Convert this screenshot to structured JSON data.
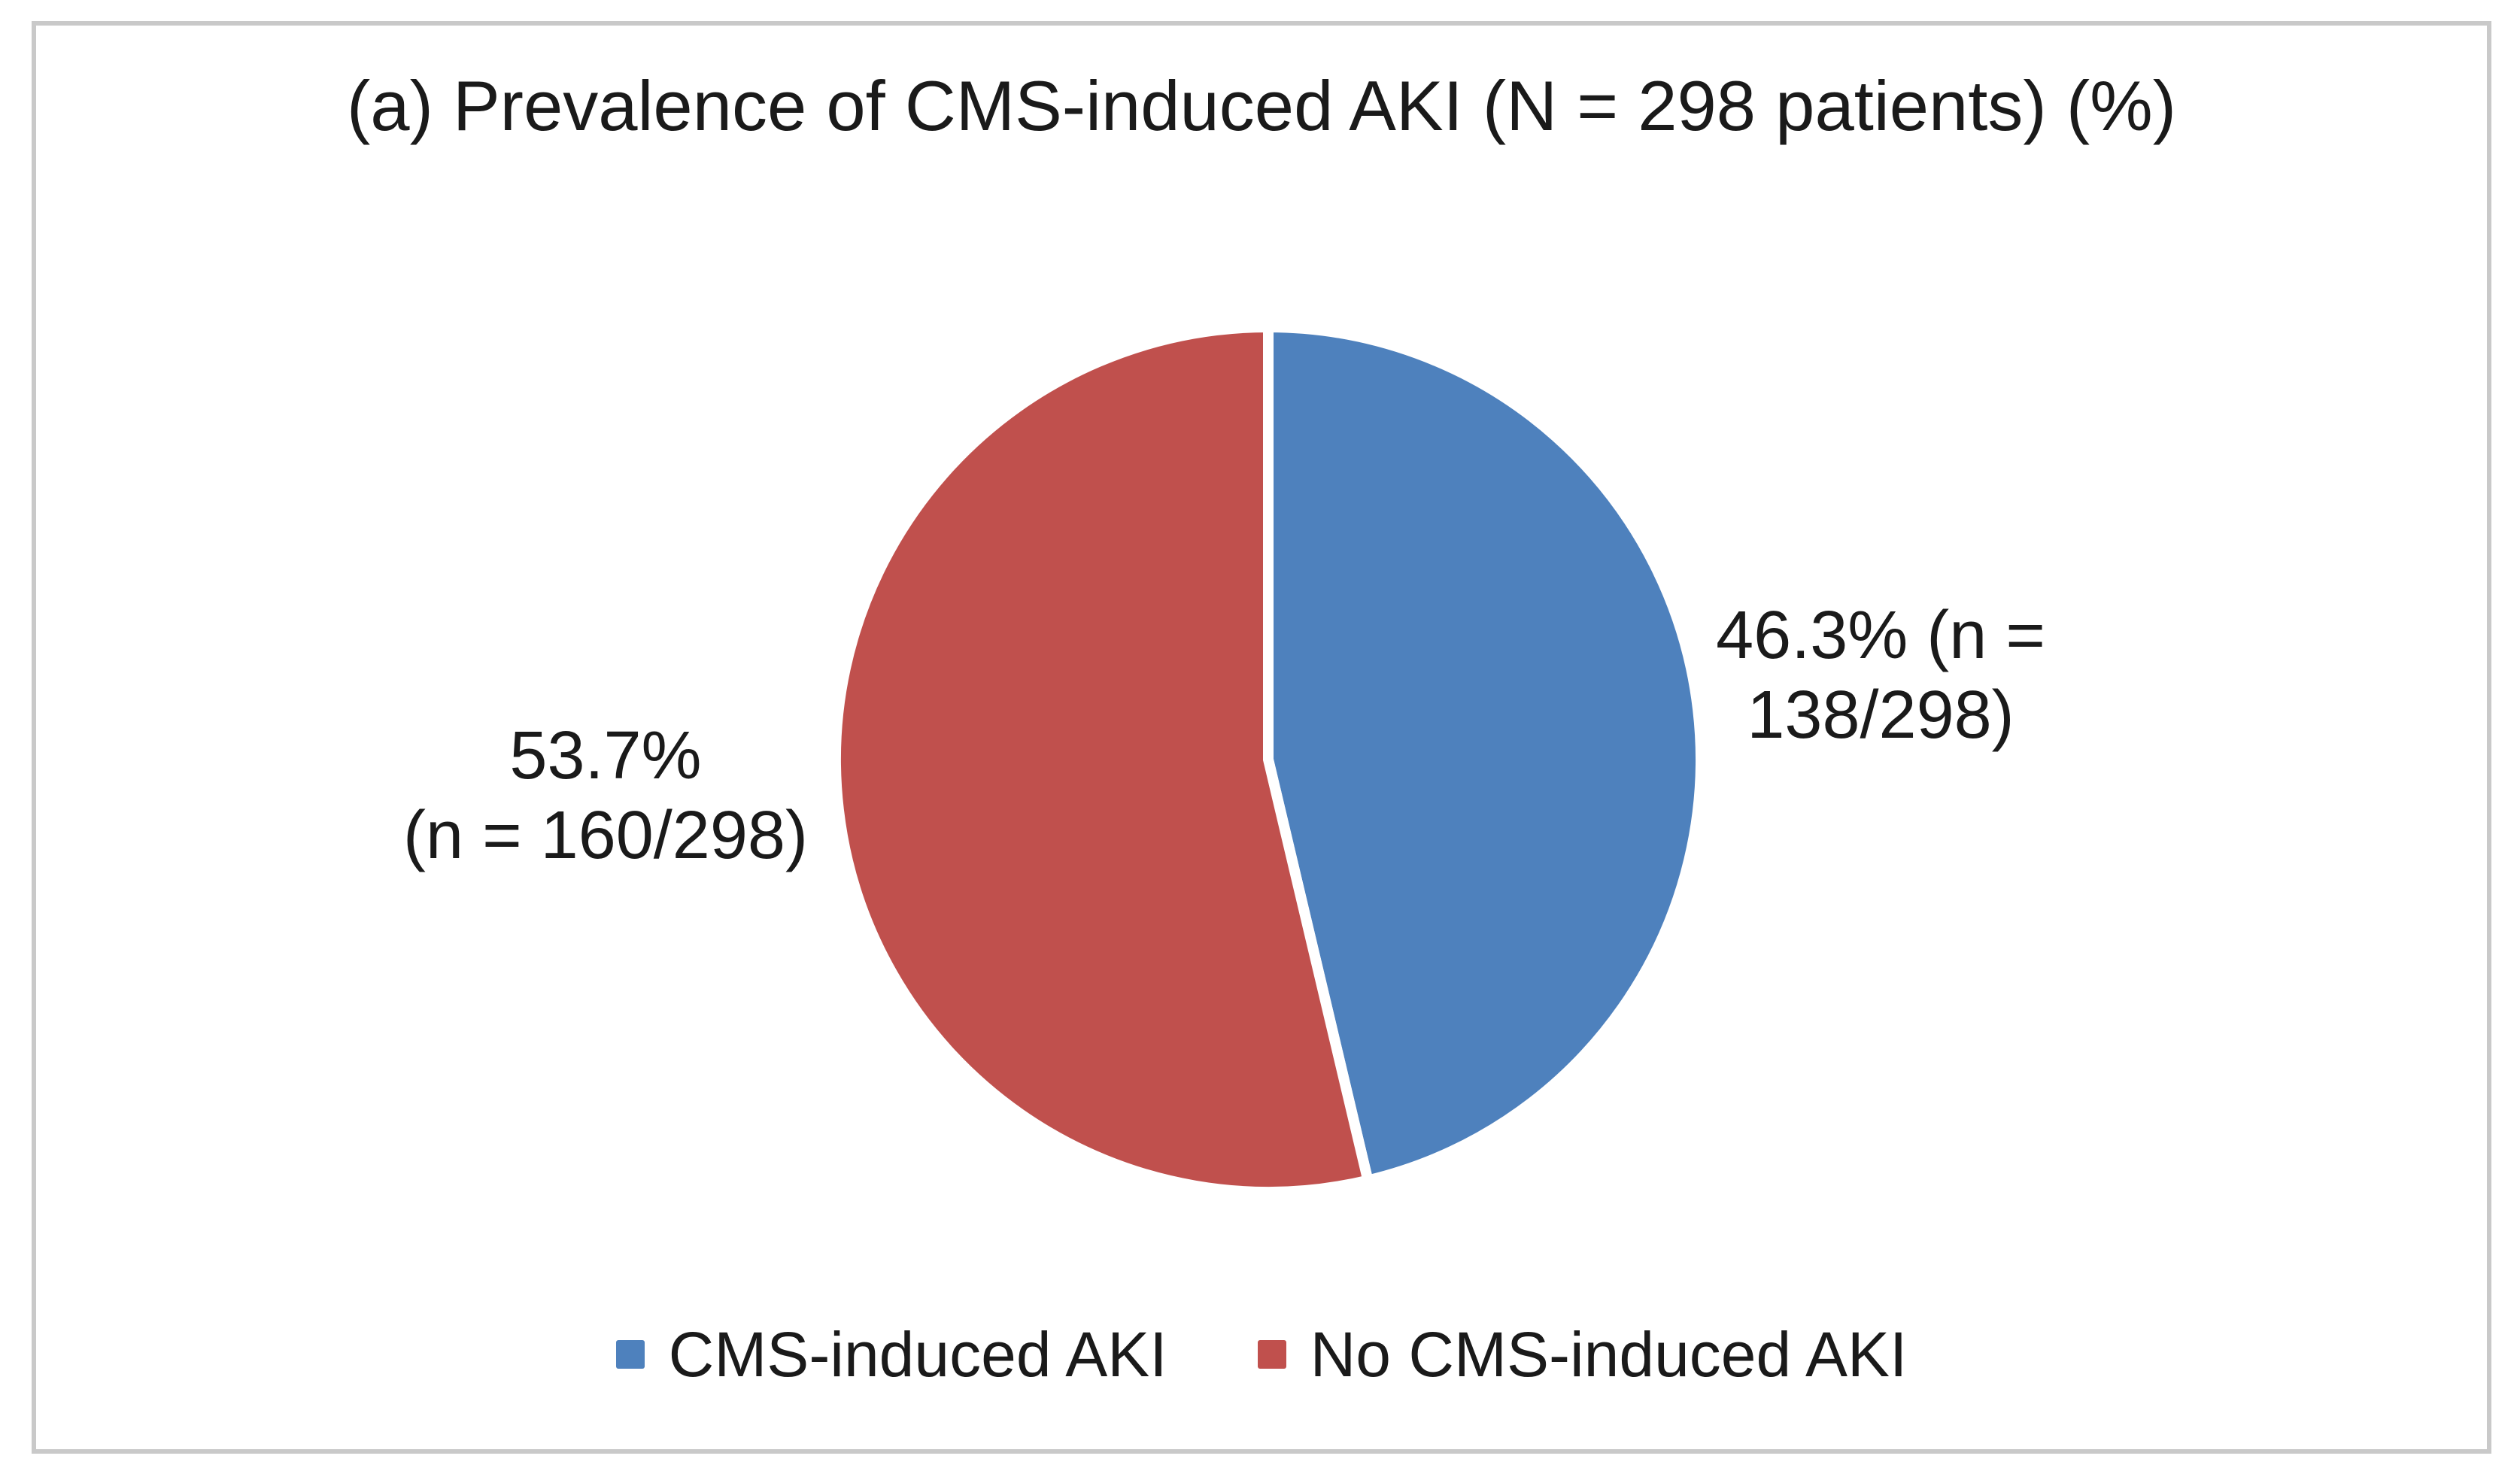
{
  "figure": {
    "title": "(a) Prevalence of CMS-induced AKI (N = 298 patients) (%)"
  },
  "chart_data": {
    "type": "pie",
    "title": "(a) Prevalence of CMS-induced AKI (N = 298 patients) (%)",
    "total_patients": 298,
    "categories": [
      "CMS-induced AKI",
      "No CMS-induced AKI"
    ],
    "values": [
      46.3,
      53.7
    ],
    "counts": [
      138,
      160
    ],
    "colors": [
      "#4E81BD",
      "#C0504D"
    ],
    "separator_color": "#ffffff",
    "start_angle_deg": 0,
    "direction": "clockwise",
    "legend_position": "bottom",
    "data_labels": [
      [
        "46.3% (n =",
        "138/298)"
      ],
      [
        "53.7%",
        "(n = 160/298)"
      ]
    ]
  },
  "frame": {
    "border_color": "#c9c9c9",
    "background": "#ffffff"
  }
}
